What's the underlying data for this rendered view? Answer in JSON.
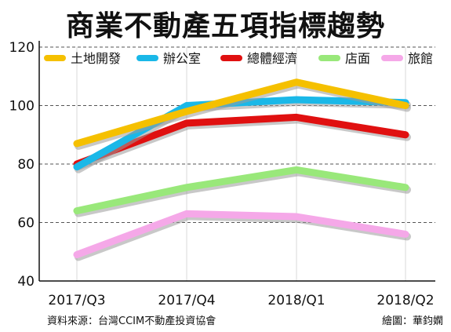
{
  "title": "商業不動產五項指標趨勢",
  "source": "資料來源：台灣CCIM不動產投資協會",
  "credit": "繪圖：華鈞嫻",
  "chart_data": {
    "type": "line",
    "title": "商業不動產五項指標趨勢",
    "xlabel": "",
    "ylabel": "",
    "categories": [
      "2017/Q3",
      "2017/Q4",
      "2018/Q1",
      "2018/Q2"
    ],
    "ylim": [
      40,
      120
    ],
    "yticks": [
      40,
      60,
      80,
      100,
      120
    ],
    "grid": "dashed horizontal",
    "legend_position": "top",
    "series": [
      {
        "name": "土地開發",
        "color": "#f5c000",
        "values": [
          87,
          98,
          108,
          100
        ]
      },
      {
        "name": "辦公室",
        "color": "#1ab8e8",
        "values": [
          79,
          100,
          102,
          101
        ]
      },
      {
        "name": "總體經濟",
        "color": "#e01010",
        "values": [
          80,
          94,
          96,
          90
        ]
      },
      {
        "name": "店面",
        "color": "#99e87a",
        "values": [
          64,
          72,
          78,
          72
        ]
      },
      {
        "name": "旅館",
        "color": "#f5a8e8",
        "values": [
          49,
          63,
          62,
          56
        ]
      }
    ]
  }
}
